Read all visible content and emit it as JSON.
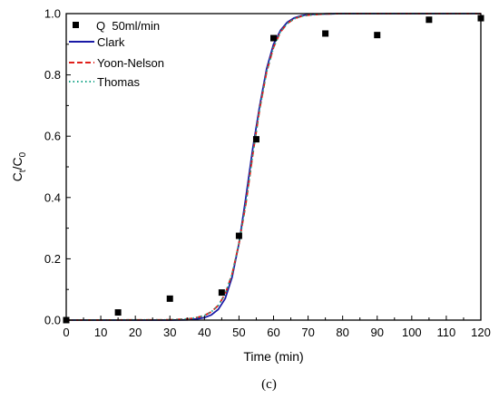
{
  "chart_data": {
    "type": "line",
    "xlabel": "Time (min)",
    "ylabel": {
      "main": "C",
      "sub1": "t",
      "slash": "/C",
      "sub2": "0"
    },
    "xlim": [
      0,
      120
    ],
    "ylim": [
      0,
      1.0
    ],
    "x_ticks": [
      "0",
      "10",
      "20",
      "30",
      "40",
      "50",
      "60",
      "70",
      "80",
      "90",
      "100",
      "110",
      "120"
    ],
    "y_ticks": [
      "0.0",
      "0.2",
      "0.4",
      "0.6",
      "0.8",
      "1.0"
    ],
    "grid": false,
    "legend_position": "top-left",
    "panel_label": "(c)",
    "scatter": {
      "name": "Q  50ml/min",
      "x": [
        0,
        15,
        30,
        45,
        50,
        55,
        60,
        75,
        90,
        105,
        120
      ],
      "y": [
        0.0,
        0.025,
        0.07,
        0.09,
        0.275,
        0.59,
        0.92,
        0.935,
        0.93,
        0.98,
        0.985
      ]
    },
    "series": [
      {
        "name": "Clark",
        "color": "#1a1aa6",
        "style": "solid",
        "x": [
          0,
          30,
          35,
          38,
          40,
          42,
          44,
          46,
          48,
          50,
          52,
          54,
          56,
          58,
          60,
          62,
          64,
          66,
          68,
          70,
          75,
          80,
          90,
          100,
          120
        ],
        "y": [
          0,
          0,
          0.001,
          0.004,
          0.008,
          0.017,
          0.035,
          0.07,
          0.14,
          0.25,
          0.4,
          0.56,
          0.7,
          0.82,
          0.9,
          0.945,
          0.972,
          0.986,
          0.993,
          0.997,
          0.999,
          1.0,
          1.0,
          1.0,
          1.0
        ]
      },
      {
        "name": "Yoon-Nelson",
        "color": "#e0201b",
        "style": "dashed",
        "x": [
          0,
          30,
          34,
          36,
          38,
          40,
          42,
          44,
          46,
          48,
          50,
          52,
          54,
          56,
          58,
          60,
          62,
          64,
          66,
          68,
          70,
          75,
          80,
          90,
          100,
          120
        ],
        "y": [
          0,
          0.001,
          0.003,
          0.005,
          0.009,
          0.015,
          0.027,
          0.048,
          0.085,
          0.15,
          0.25,
          0.38,
          0.54,
          0.69,
          0.81,
          0.89,
          0.94,
          0.968,
          0.983,
          0.991,
          0.995,
          0.999,
          1.0,
          1.0,
          1.0,
          1.0
        ]
      },
      {
        "name": "Thomas",
        "color": "#1aa68a",
        "style": "dotted",
        "x": [
          0,
          30,
          34,
          36,
          38,
          40,
          42,
          44,
          46,
          48,
          50,
          52,
          54,
          56,
          58,
          60,
          62,
          64,
          66,
          68,
          70,
          75,
          80,
          90,
          100,
          120
        ],
        "y": [
          0,
          0.001,
          0.003,
          0.005,
          0.009,
          0.015,
          0.027,
          0.048,
          0.085,
          0.15,
          0.25,
          0.38,
          0.54,
          0.69,
          0.81,
          0.89,
          0.94,
          0.968,
          0.983,
          0.991,
          0.995,
          0.999,
          1.0,
          1.0,
          1.0,
          1.0
        ]
      }
    ]
  }
}
